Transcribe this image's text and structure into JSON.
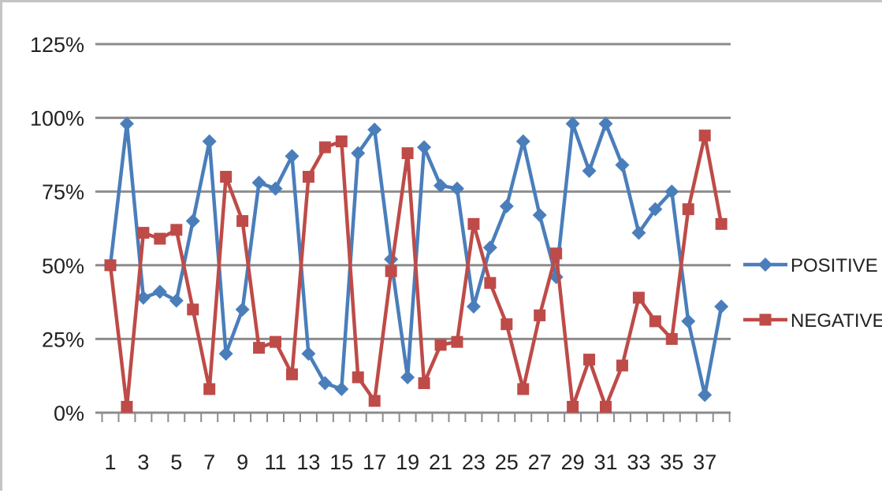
{
  "chart_data": {
    "type": "line",
    "title": "",
    "xlabel": "",
    "ylabel": "",
    "x": [
      1,
      2,
      3,
      4,
      5,
      6,
      7,
      8,
      9,
      10,
      11,
      12,
      13,
      14,
      15,
      16,
      17,
      18,
      19,
      20,
      21,
      22,
      23,
      24,
      25,
      26,
      27,
      28,
      29,
      30,
      31,
      32,
      33,
      34,
      35,
      36,
      37,
      38
    ],
    "x_tick_labels": [
      "1",
      "3",
      "5",
      "7",
      "9",
      "11",
      "13",
      "15",
      "17",
      "19",
      "21",
      "23",
      "25",
      "27",
      "29",
      "31",
      "33",
      "35",
      "37"
    ],
    "y_ticks": [
      0,
      25,
      50,
      75,
      100,
      125
    ],
    "y_tick_labels": [
      "0%",
      "25%",
      "50%",
      "75%",
      "100%",
      "125%"
    ],
    "ylim": [
      0,
      125
    ],
    "grid": "horizontal",
    "legend_position": "right",
    "series": [
      {
        "name": "POSITIVE",
        "color": "#4a7ebb",
        "marker": "diamond",
        "values": [
          50,
          98,
          39,
          41,
          38,
          65,
          92,
          20,
          35,
          78,
          76,
          87,
          20,
          10,
          8,
          88,
          96,
          52,
          12,
          90,
          77,
          76,
          36,
          56,
          70,
          92,
          67,
          46,
          98,
          82,
          98,
          84,
          61,
          69,
          75,
          31,
          6,
          36
        ]
      },
      {
        "name": "NEGATIVE",
        "color": "#be4b48",
        "marker": "square",
        "values": [
          50,
          2,
          61,
          59,
          62,
          35,
          8,
          80,
          65,
          22,
          24,
          13,
          80,
          90,
          92,
          12,
          4,
          48,
          88,
          10,
          23,
          24,
          64,
          44,
          30,
          8,
          33,
          54,
          2,
          18,
          2,
          16,
          39,
          31,
          25,
          69,
          94,
          64
        ]
      }
    ]
  }
}
